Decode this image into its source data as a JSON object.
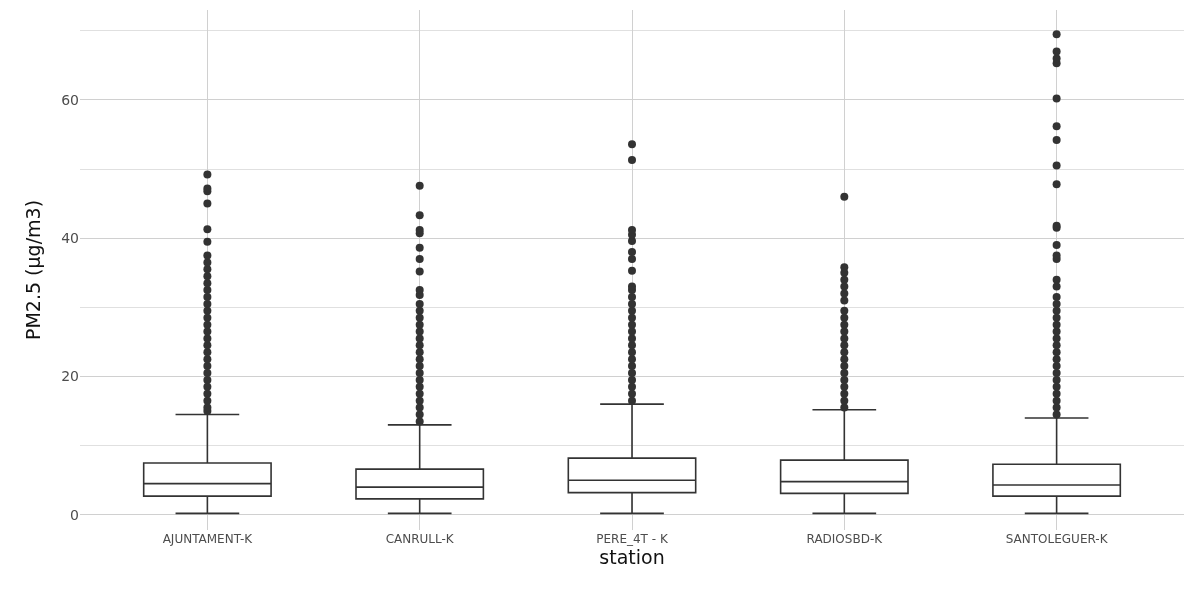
{
  "chart_data": {
    "type": "box",
    "xlabel": "station",
    "ylabel": "PM2.5 (µg/m3)",
    "categories": [
      "AJUNTAMENT-K",
      "CANRULL-K",
      "PERE_4T - K",
      "RADIOSBD-K",
      "SANTOLEGUER-K"
    ],
    "boxes": [
      {
        "low": 0.2,
        "q1": 2.7,
        "median": 4.5,
        "q3": 7.5,
        "high": 14.5,
        "outliers": [
          15,
          15.5,
          16.5,
          17.5,
          18.5,
          19.5,
          20.5,
          21.5,
          22.5,
          23.5,
          24.5,
          25.5,
          26.5,
          27.5,
          28.5,
          29.5,
          30.5,
          31.5,
          32.5,
          33.5,
          34.5,
          35.5,
          36.5,
          37.5,
          39.5,
          41.3,
          45,
          46.8,
          47.2,
          49.2
        ]
      },
      {
        "low": 0.2,
        "q1": 2.3,
        "median": 4.0,
        "q3": 6.6,
        "high": 13,
        "outliers": [
          13.5,
          14.5,
          15.5,
          16.5,
          17.5,
          18.5,
          19.5,
          20.5,
          21.5,
          22.5,
          23.5,
          24.5,
          25.5,
          26.5,
          27.5,
          28.5,
          29.5,
          30.5,
          31.8,
          32.5,
          35.2,
          37,
          38.6,
          40.7,
          41.2,
          43.3,
          47.6
        ]
      },
      {
        "low": 0.2,
        "q1": 3.2,
        "median": 5.0,
        "q3": 8.2,
        "high": 16,
        "outliers": [
          16.5,
          17.5,
          18.5,
          19.5,
          20.5,
          21.5,
          22.5,
          23.5,
          24.5,
          25.5,
          26.5,
          27.5,
          28.5,
          29.5,
          30.5,
          31.5,
          32.5,
          33,
          35.3,
          37,
          38,
          39.6,
          40.5,
          41.2,
          51.3,
          53.6
        ]
      },
      {
        "low": 0.2,
        "q1": 3.1,
        "median": 4.8,
        "q3": 7.9,
        "high": 15.2,
        "outliers": [
          15.5,
          16.5,
          17.5,
          18.5,
          19.5,
          20.5,
          21.5,
          22.5,
          23.5,
          24.5,
          25.5,
          26.5,
          27.5,
          28.5,
          29.5,
          31,
          32,
          33,
          34,
          35,
          35.8,
          46
        ]
      },
      {
        "low": 0.2,
        "q1": 2.7,
        "median": 4.3,
        "q3": 7.3,
        "high": 14,
        "outliers": [
          14.5,
          15.5,
          16.5,
          17.5,
          18.5,
          19.5,
          20.5,
          21.5,
          22.5,
          23.5,
          24.5,
          25.5,
          26.5,
          27.5,
          28.5,
          29.5,
          30.5,
          31.5,
          33,
          34,
          37,
          37.5,
          39,
          41.5,
          41.8,
          47.8,
          50.5,
          54.2,
          56.2,
          60.2,
          65.3,
          66,
          67,
          69.5
        ]
      }
    ],
    "color": "#333333",
    "ylim": [
      -2.2,
      73
    ],
    "yticks": [
      0,
      20,
      40,
      60
    ],
    "grid": true
  }
}
